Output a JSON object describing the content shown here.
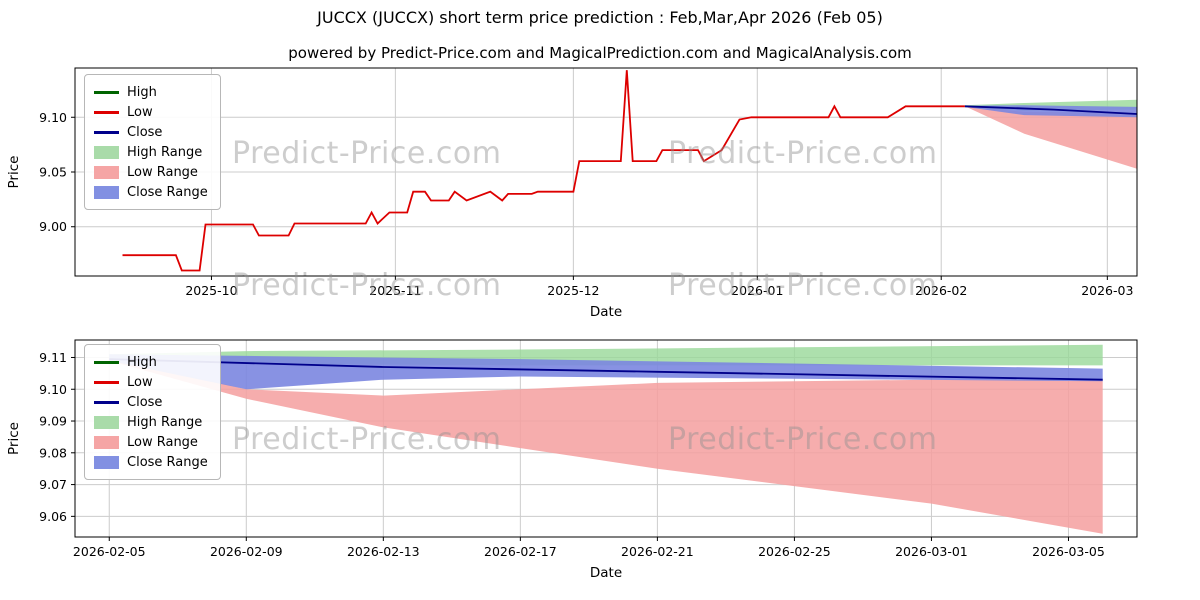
{
  "title": "JUCCX (JUCCX) short term price prediction : Feb,Mar,Apr 2026 (Feb 05)",
  "subtitle": "powered by Predict-Price.com and MagicalPrediction.com and MagicalAnalysis.com",
  "watermark": {
    "text": "Predict-Price.com"
  },
  "axes": {
    "x_label": "Date",
    "y_label": "Price"
  },
  "legend": {
    "items": [
      {
        "label": "High",
        "type": "line",
        "color": "#006400"
      },
      {
        "label": "Low",
        "type": "line",
        "color": "#dd0000"
      },
      {
        "label": "Close",
        "type": "line",
        "color": "#00008b"
      },
      {
        "label": "High Range",
        "type": "patch",
        "color": "#a9dba9"
      },
      {
        "label": "Low Range",
        "type": "patch",
        "color": "#f5a5a5"
      },
      {
        "label": "Close Range",
        "type": "patch",
        "color": "#8290e2"
      }
    ]
  },
  "chart_data": [
    {
      "type": "line",
      "name": "history-with-forecast",
      "x_domain": [
        "2025-09-08",
        "2026-03-06"
      ],
      "y_domain": [
        8.955,
        9.145
      ],
      "x_ticks": [
        {
          "v": "2025-10-01",
          "label": "2025-10"
        },
        {
          "v": "2025-11-01",
          "label": "2025-11"
        },
        {
          "v": "2025-12-01",
          "label": "2025-12"
        },
        {
          "v": "2026-01-01",
          "label": "2026-01"
        },
        {
          "v": "2026-02-01",
          "label": "2026-02"
        },
        {
          "v": "2026-03-01",
          "label": "2026-03"
        }
      ],
      "y_ticks": [
        {
          "v": 9.0,
          "label": "9.00"
        },
        {
          "v": 9.05,
          "label": "9.05"
        },
        {
          "v": 9.1,
          "label": "9.10"
        }
      ],
      "bands": [
        {
          "name": "High Range",
          "color": "#98d898",
          "opacity": 0.8,
          "x": [
            "2026-02-05",
            "2026-02-15",
            "2026-03-06"
          ],
          "upper": [
            9.111,
            9.113,
            9.116
          ],
          "lower": [
            9.109,
            9.106,
            9.107
          ]
        },
        {
          "name": "Low Range",
          "color": "#f59f9f",
          "opacity": 0.85,
          "x": [
            "2026-02-05",
            "2026-02-15",
            "2026-03-06"
          ],
          "upper": [
            9.11,
            9.105,
            9.104
          ],
          "lower": [
            9.11,
            9.085,
            9.053
          ]
        },
        {
          "name": "Close Range",
          "color": "#7b86e0",
          "opacity": 0.9,
          "x": [
            "2026-02-05",
            "2026-02-15",
            "2026-03-06"
          ],
          "upper": [
            9.1105,
            9.111,
            9.1095
          ],
          "lower": [
            9.1095,
            9.102,
            9.1
          ]
        }
      ],
      "lines": [
        {
          "name": "Low",
          "color": "#dd0000",
          "x": [
            "2025-09-16",
            "2025-09-25",
            "2025-09-26",
            "2025-09-29",
            "2025-09-30",
            "2025-10-08",
            "2025-10-09",
            "2025-10-14",
            "2025-10-15",
            "2025-10-27",
            "2025-10-28",
            "2025-10-29",
            "2025-10-31",
            "2025-11-03",
            "2025-11-04",
            "2025-11-06",
            "2025-11-07",
            "2025-11-10",
            "2025-11-11",
            "2025-11-13",
            "2025-11-17",
            "2025-11-19",
            "2025-11-20",
            "2025-11-24",
            "2025-11-25",
            "2025-12-01",
            "2025-12-02",
            "2025-12-09",
            "2025-12-10",
            "2025-12-11",
            "2025-12-15",
            "2025-12-16",
            "2025-12-22",
            "2025-12-23",
            "2025-12-26",
            "2025-12-29",
            "2025-12-31",
            "2026-01-13",
            "2026-01-14",
            "2026-01-15",
            "2026-01-23",
            "2026-01-26",
            "2026-02-05"
          ],
          "y": [
            8.974,
            8.974,
            8.96,
            8.96,
            9.002,
            9.002,
            8.992,
            8.992,
            9.003,
            9.003,
            9.013,
            9.003,
            9.013,
            9.013,
            9.032,
            9.032,
            9.024,
            9.024,
            9.032,
            9.024,
            9.032,
            9.024,
            9.03,
            9.03,
            9.032,
            9.032,
            9.06,
            9.06,
            9.143,
            9.06,
            9.06,
            9.07,
            9.07,
            9.06,
            9.07,
            9.098,
            9.1,
            9.1,
            9.11,
            9.1,
            9.1,
            9.11,
            9.11
          ]
        },
        {
          "name": "Close",
          "color": "#00008b",
          "x": [
            "2026-02-05",
            "2026-02-20",
            "2026-03-06"
          ],
          "y": [
            9.11,
            9.107,
            9.103
          ]
        }
      ]
    },
    {
      "type": "line",
      "name": "forecast-detail",
      "x_domain": [
        "2026-02-04",
        "2026-03-07"
      ],
      "y_domain": [
        9.0535,
        9.1155
      ],
      "x_ticks": [
        {
          "v": "2026-02-05",
          "label": "2026-02-05"
        },
        {
          "v": "2026-02-09",
          "label": "2026-02-09"
        },
        {
          "v": "2026-02-13",
          "label": "2026-02-13"
        },
        {
          "v": "2026-02-17",
          "label": "2026-02-17"
        },
        {
          "v": "2026-02-21",
          "label": "2026-02-21"
        },
        {
          "v": "2026-02-25",
          "label": "2026-02-25"
        },
        {
          "v": "2026-03-01",
          "label": "2026-03-01"
        },
        {
          "v": "2026-03-05",
          "label": "2026-03-05"
        }
      ],
      "y_ticks": [
        {
          "v": 9.06,
          "label": "9.06"
        },
        {
          "v": 9.07,
          "label": "9.07"
        },
        {
          "v": 9.08,
          "label": "9.08"
        },
        {
          "v": 9.09,
          "label": "9.09"
        },
        {
          "v": 9.1,
          "label": "9.10"
        },
        {
          "v": 9.11,
          "label": "9.11"
        }
      ],
      "bands": [
        {
          "name": "High Range",
          "color": "#98d898",
          "opacity": 0.8,
          "x": [
            "2026-02-05",
            "2026-02-09",
            "2026-02-17",
            "2026-03-06"
          ],
          "upper": [
            9.111,
            9.112,
            9.1125,
            9.114
          ],
          "lower": [
            9.1095,
            9.108,
            9.1075,
            9.1075
          ]
        },
        {
          "name": "Low Range",
          "color": "#f59f9f",
          "opacity": 0.85,
          "x": [
            "2026-02-05",
            "2026-02-09",
            "2026-02-13",
            "2026-02-21",
            "2026-03-01",
            "2026-03-06"
          ],
          "upper": [
            9.11,
            9.1,
            9.098,
            9.102,
            9.103,
            9.103
          ],
          "lower": [
            9.109,
            9.097,
            9.088,
            9.075,
            9.064,
            9.0545
          ]
        },
        {
          "name": "Close Range",
          "color": "#7b86e0",
          "opacity": 0.9,
          "x": [
            "2026-02-05",
            "2026-02-09",
            "2026-02-13",
            "2026-02-17",
            "2026-03-06"
          ],
          "upper": [
            9.111,
            9.1105,
            9.11,
            9.1095,
            9.1065
          ],
          "lower": [
            9.109,
            9.1,
            9.103,
            9.104,
            9.1025
          ]
        }
      ],
      "lines": [
        {
          "name": "Close",
          "color": "#00008b",
          "x": [
            "2026-02-05",
            "2026-02-13",
            "2026-02-21",
            "2026-03-06"
          ],
          "y": [
            9.1095,
            9.107,
            9.1055,
            9.103
          ]
        }
      ]
    }
  ]
}
